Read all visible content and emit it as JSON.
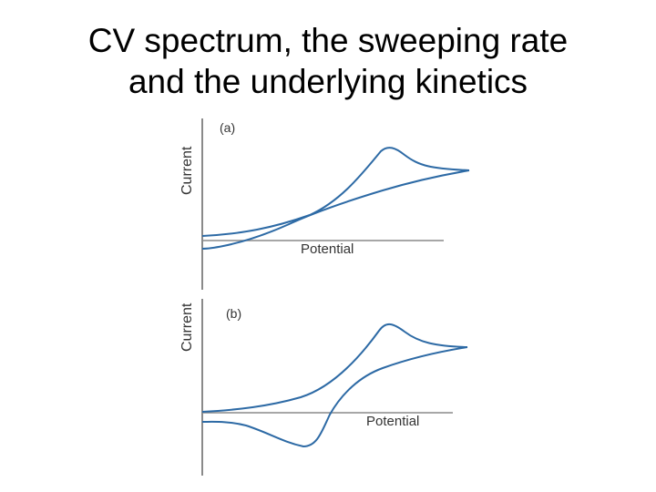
{
  "slide": {
    "title_line1": "CV spectrum, the sweeping rate",
    "title_line2": "and the underlying kinetics"
  },
  "panels": [
    {
      "tag": "(a)",
      "y_label": "Current",
      "x_label": "Potential"
    },
    {
      "tag": "(b)",
      "y_label": "Current",
      "x_label": "Potential"
    }
  ],
  "colors": {
    "curve": "#2d6aa5",
    "axis": "#8a8a8a",
    "text": "#333333"
  }
}
